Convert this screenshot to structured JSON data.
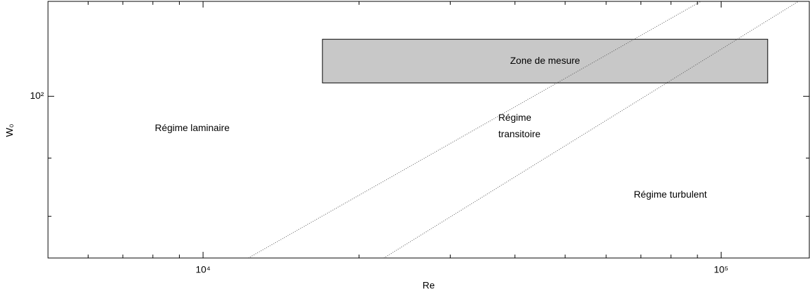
{
  "chart_data": {
    "type": "region-map",
    "xlabel": "Re",
    "ylabel": "W₀",
    "xscale": "log",
    "yscale": "log",
    "xlim": [
      5020,
      148000
    ],
    "ylim": [
      39.3,
      173
    ],
    "xticks": [
      {
        "value": 10000,
        "label": "10⁴"
      },
      {
        "value": 100000,
        "label": "10⁵"
      }
    ],
    "xminorticks": [
      6000,
      7000,
      8000,
      9000,
      20000,
      30000,
      40000,
      50000,
      60000,
      70000,
      80000,
      90000
    ],
    "yticks": [
      {
        "value": 100,
        "label": "10²"
      }
    ],
    "yminorticks": [
      50,
      70
    ],
    "series": [
      {
        "x": [
          12230,
          91400
        ],
        "values": [
          39.3,
          173
        ],
        "color": "#555555"
      },
      {
        "x": [
          22340,
          141000
        ],
        "values": [
          39.3,
          173
        ],
        "color": "#555555"
      }
    ],
    "zone": {
      "label": "Zone de mesure",
      "x": [
        17000,
        123000
      ],
      "values": [
        108,
        139
      ],
      "color": "#c8c8c8"
    },
    "annotations": [
      {
        "text": [
          "Régime laminaire"
        ],
        "x": 9530,
        "y": 83,
        "anchor": "middle"
      },
      {
        "text": [
          "Régime",
          "transitoire"
        ],
        "x": 37150,
        "y": 84,
        "anchor": "start"
      },
      {
        "text": [
          "Régime turbulent"
        ],
        "x": 79800,
        "y": 56.5,
        "anchor": "middle"
      }
    ]
  }
}
